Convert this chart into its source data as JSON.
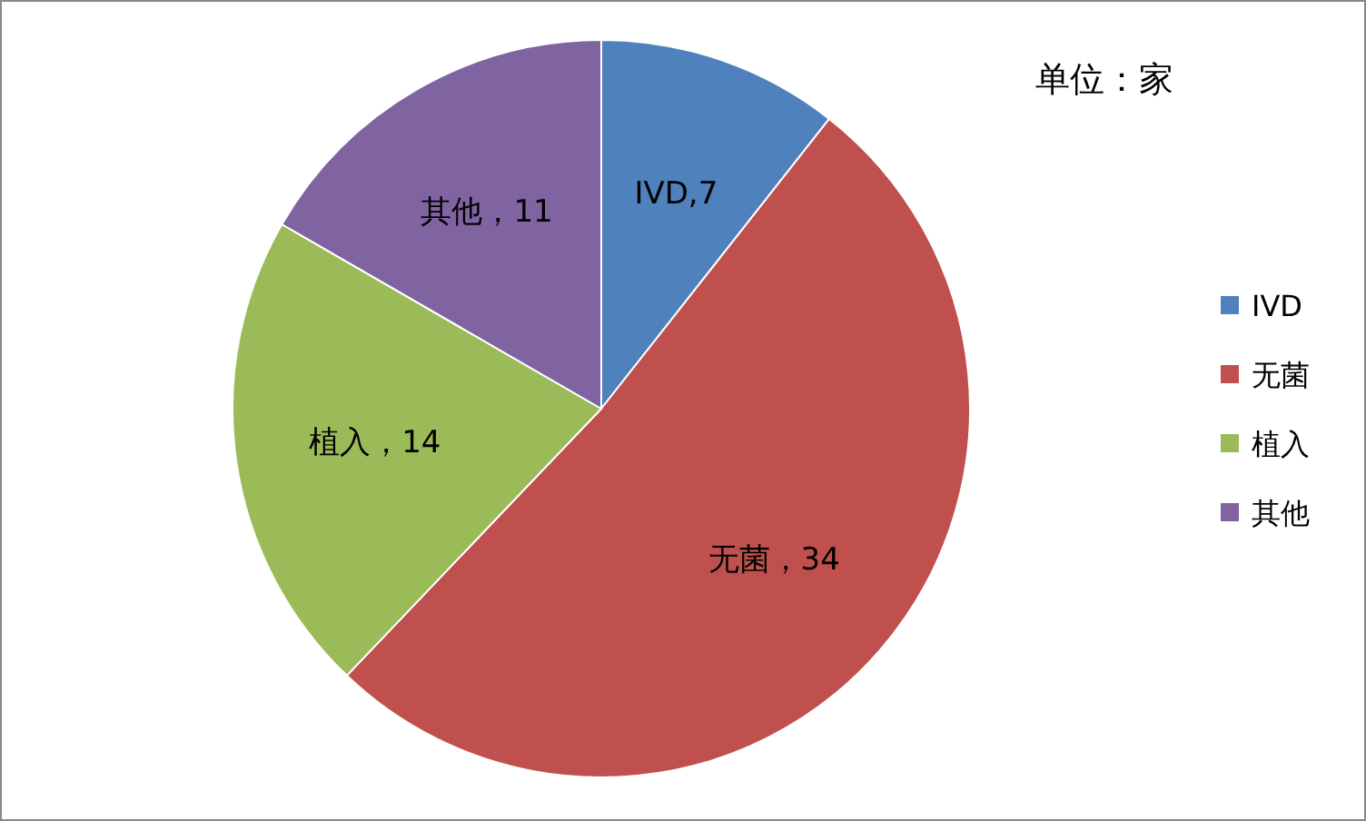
{
  "chart_data": {
    "type": "pie",
    "categories": [
      "IVD",
      "无菌",
      "植入",
      "其他"
    ],
    "values": [
      7,
      34,
      14,
      11
    ],
    "colors": [
      "#4f81bd",
      "#c0504d",
      "#9bbb59",
      "#8064a2"
    ],
    "value_labels": [
      "IVD,7",
      "无菌，34",
      "植入，14",
      "其他，11"
    ],
    "annotations": [
      "单位：家"
    ],
    "legend": "right"
  }
}
